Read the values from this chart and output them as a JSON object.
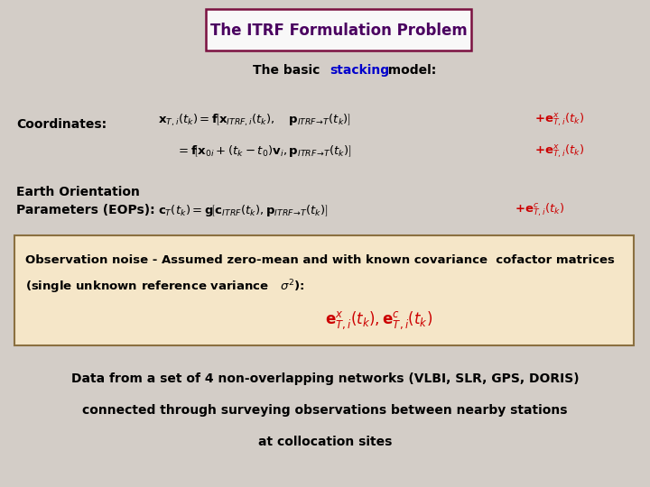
{
  "background_color": "#d3cdc7",
  "title_text": "The ITRF Formulation Problem",
  "title_box_facecolor": "#f8f8f8",
  "title_border_color": "#7a1040",
  "title_text_color": "#4a0060",
  "subtitle_normal": "The basic  ",
  "subtitle_highlight": "stacking",
  "subtitle_rest": "  model:",
  "subtitle_highlight_color": "#0000cc",
  "coords_label": "Coordinates:",
  "eop_label1": "Earth Orientation",
  "eop_label2": "Parameters (EOPs):",
  "obs_box_color": "#f5e6c8",
  "obs_box_border": "#8B7040",
  "obs_text1": "Observation noise - Assumed zero-mean and with known covariance  cofactor matrices",
  "obs_text2": "(single unknown reference variance   σ²):",
  "bottom_line1": "Data from a set of 4 non-overlapping networks (VLBI, SLR, GPS, DORIS)",
  "bottom_line2": "connected through surveying observations between nearby stations",
  "bottom_line3": "at collocation sites"
}
